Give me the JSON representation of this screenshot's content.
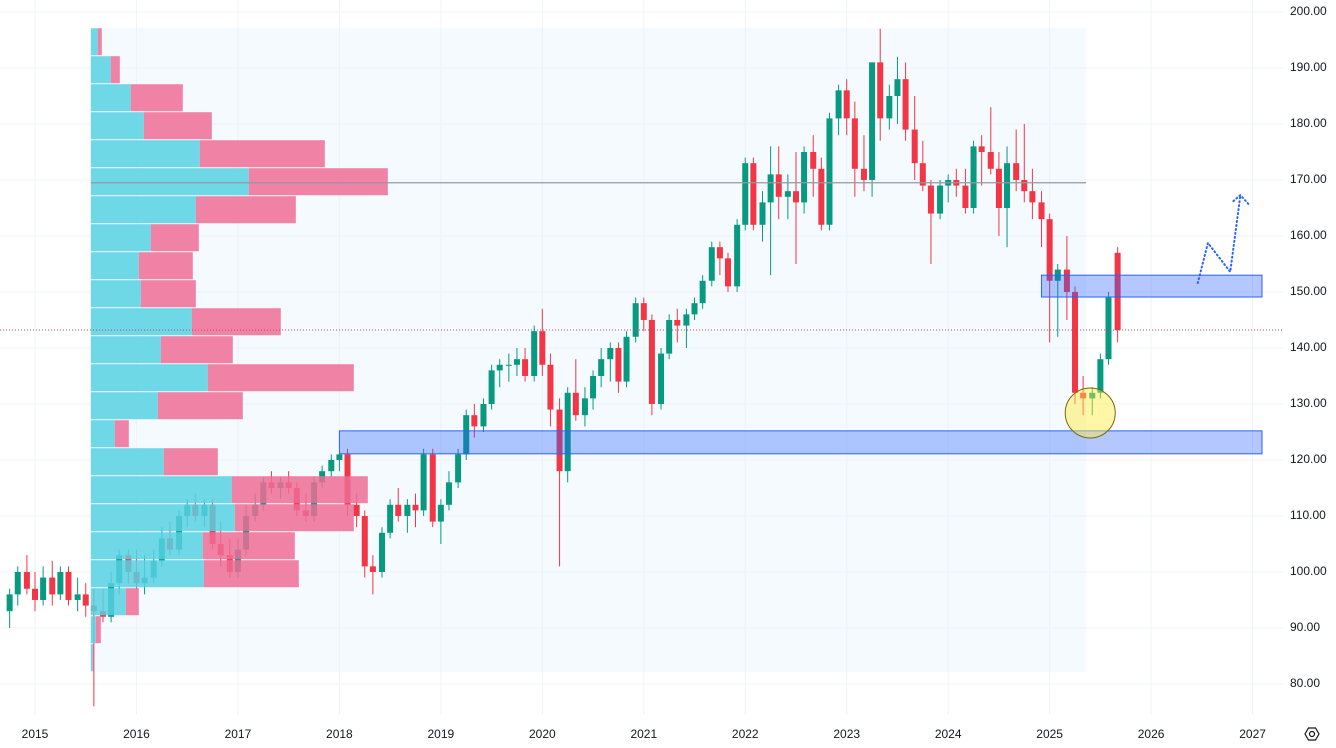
{
  "chart_data": {
    "type": "candlestick",
    "up_color": "#089981",
    "down_color": "#f23645",
    "grid": true,
    "xlim": [
      2014.655,
      2027.29
    ],
    "xticks": [
      2015,
      2016,
      2017,
      2018,
      2019,
      2020,
      2021,
      2022,
      2023,
      2024,
      2025,
      2026,
      2027
    ],
    "ylim": [
      74.46,
      202.14
    ],
    "yticks": [
      {
        "value": 80,
        "label": "80.00"
      },
      {
        "value": 90,
        "label": "90.00"
      },
      {
        "value": 100,
        "label": "100.00"
      },
      {
        "value": 110,
        "label": "110.00"
      },
      {
        "value": 120,
        "label": "120.00"
      },
      {
        "value": 130,
        "label": "130.00"
      },
      {
        "value": 140,
        "label": "140.00"
      },
      {
        "value": 150,
        "label": "150.00"
      },
      {
        "value": 160,
        "label": "160.00"
      },
      {
        "value": 170,
        "label": "170.00"
      },
      {
        "value": 180,
        "label": "180.00"
      },
      {
        "value": 190,
        "label": "190.00"
      },
      {
        "value": 200,
        "label": "200.00"
      }
    ],
    "x": [
      2014.75,
      2014.83,
      2014.92,
      2015,
      2015.08,
      2015.17,
      2015.25,
      2015.33,
      2015.42,
      2015.5,
      2015.58,
      2015.67,
      2015.75,
      2015.83,
      2015.92,
      2016,
      2016.08,
      2016.17,
      2016.25,
      2016.33,
      2016.42,
      2016.5,
      2016.58,
      2016.67,
      2016.75,
      2016.83,
      2016.92,
      2017,
      2017.08,
      2017.17,
      2017.25,
      2017.33,
      2017.42,
      2017.5,
      2017.58,
      2017.67,
      2017.75,
      2017.83,
      2017.92,
      2018,
      2018.08,
      2018.17,
      2018.25,
      2018.33,
      2018.42,
      2018.5,
      2018.58,
      2018.67,
      2018.75,
      2018.83,
      2018.92,
      2019,
      2019.08,
      2019.17,
      2019.25,
      2019.33,
      2019.42,
      2019.5,
      2019.58,
      2019.67,
      2019.75,
      2019.83,
      2019.92,
      2020,
      2020.08,
      2020.17,
      2020.25,
      2020.33,
      2020.42,
      2020.5,
      2020.58,
      2020.67,
      2020.75,
      2020.83,
      2020.92,
      2021,
      2021.08,
      2021.17,
      2021.25,
      2021.33,
      2021.42,
      2021.5,
      2021.58,
      2021.67,
      2021.75,
      2021.83,
      2021.92,
      2022,
      2022.08,
      2022.17,
      2022.25,
      2022.33,
      2022.42,
      2022.5,
      2022.58,
      2022.67,
      2022.75,
      2022.83,
      2022.92,
      2023,
      2023.08,
      2023.17,
      2023.25,
      2023.33,
      2023.42,
      2023.5,
      2023.58,
      2023.67,
      2023.75,
      2023.83,
      2023.92,
      2024,
      2024.08,
      2024.17,
      2024.25,
      2024.33,
      2024.42,
      2024.5,
      2024.58,
      2024.67,
      2024.75,
      2024.83,
      2024.92,
      2025,
      2025.08,
      2025.17,
      2025.25,
      2025.33,
      2025.42,
      2025.5,
      2025.58,
      2025.67
    ],
    "open": [
      93,
      96,
      100,
      97,
      95,
      99,
      96,
      100,
      95,
      96,
      94,
      93,
      92,
      98,
      103,
      100,
      98,
      99,
      102,
      106,
      104,
      110,
      112,
      110,
      112,
      105,
      103,
      100,
      104,
      110,
      112,
      116,
      115,
      116,
      115,
      111,
      110,
      116,
      118,
      120,
      121,
      112,
      110,
      101,
      100,
      107,
      112,
      110,
      112,
      111,
      121,
      109,
      112,
      116,
      121,
      128,
      126,
      130,
      136,
      137,
      137,
      138,
      135,
      143,
      137,
      129,
      118,
      132,
      128,
      131,
      135,
      138,
      140,
      134,
      142,
      148,
      145,
      130,
      139,
      145,
      144,
      146,
      148,
      152,
      158,
      156,
      151,
      162,
      173,
      162,
      166,
      171,
      167,
      168,
      166,
      175,
      172,
      162,
      181,
      186,
      181,
      172,
      170,
      191,
      181,
      185,
      188,
      179,
      173,
      169,
      164,
      169,
      170,
      169,
      165,
      176,
      175,
      172,
      165,
      173,
      170,
      168,
      166,
      163,
      152,
      154,
      150,
      132,
      131,
      132,
      138,
      157
    ],
    "high": [
      97,
      101,
      103,
      100,
      101,
      102,
      101,
      101,
      99,
      98,
      97,
      97,
      100,
      104,
      104,
      104,
      103,
      104,
      108,
      109,
      111,
      113,
      114,
      113,
      113,
      109,
      106,
      106,
      112,
      114,
      117,
      118,
      117,
      118,
      116,
      114,
      117,
      119,
      121,
      121,
      122,
      114,
      111,
      103,
      108,
      113,
      115,
      113,
      114,
      122,
      122,
      113,
      118,
      122,
      129,
      130,
      131,
      137,
      138,
      139,
      140,
      140,
      144,
      147,
      139,
      131,
      133,
      138,
      133,
      136,
      140,
      141,
      141,
      143,
      149,
      149,
      146,
      140,
      146,
      147,
      147,
      149,
      153,
      159,
      159,
      157,
      163,
      174,
      174,
      168,
      176,
      176,
      171,
      175,
      176,
      178,
      174,
      182,
      187,
      188,
      184,
      178,
      191,
      197,
      187,
      192,
      191,
      185,
      177,
      170,
      170,
      171,
      172,
      172,
      177,
      178,
      183,
      175,
      176,
      179,
      180,
      172,
      168,
      164,
      155,
      160,
      151,
      135,
      133,
      139,
      150,
      158
    ],
    "low": [
      90,
      94,
      96,
      93,
      94,
      94,
      95,
      94,
      93,
      92,
      76,
      91,
      91,
      96,
      98,
      97,
      96,
      98,
      101,
      103,
      103,
      108,
      109,
      108,
      104,
      101,
      99,
      99,
      103,
      109,
      111,
      114,
      113,
      114,
      110,
      109,
      109,
      115,
      117,
      118,
      110,
      108,
      99,
      96,
      99,
      106,
      109,
      107,
      108,
      110,
      108,
      105,
      111,
      115,
      120,
      124,
      125,
      129,
      133,
      134,
      135,
      134,
      134,
      135,
      126,
      101,
      116,
      127,
      126,
      129,
      133,
      134,
      132,
      133,
      141,
      143,
      128,
      129,
      138,
      141,
      140,
      145,
      147,
      151,
      153,
      150,
      150,
      161,
      161,
      159,
      153,
      163,
      163,
      155,
      164,
      167,
      161,
      161,
      178,
      178,
      167,
      168,
      167,
      177,
      179,
      180,
      177,
      170,
      168,
      155,
      163,
      166,
      167,
      164,
      164,
      169,
      171,
      160,
      158,
      168,
      166,
      163,
      158,
      141,
      142,
      145,
      130,
      128,
      128,
      131,
      137,
      141
    ],
    "close": [
      96,
      100,
      97,
      95,
      99,
      96,
      100,
      95,
      96,
      94,
      93,
      92,
      98,
      103,
      100,
      98,
      99,
      102,
      106,
      104,
      110,
      112,
      110,
      112,
      105,
      103,
      100,
      104,
      110,
      112,
      116,
      115,
      116,
      115,
      111,
      110,
      116,
      118,
      120,
      121,
      112,
      110,
      101,
      100,
      107,
      112,
      110,
      112,
      111,
      121,
      109,
      112,
      116,
      121,
      128,
      126,
      130,
      136,
      137,
      137,
      138,
      135,
      143,
      137,
      129,
      118,
      132,
      128,
      131,
      135,
      138,
      140,
      134,
      142,
      148,
      145,
      130,
      139,
      145,
      144,
      146,
      148,
      152,
      158,
      156,
      151,
      162,
      173,
      162,
      166,
      171,
      167,
      168,
      166,
      175,
      172,
      162,
      181,
      186,
      181,
      172,
      170,
      191,
      181,
      185,
      188,
      179,
      173,
      169,
      164,
      169,
      170,
      169,
      165,
      176,
      175,
      172,
      165,
      173,
      170,
      168,
      166,
      163,
      152,
      154,
      150,
      132,
      131,
      132,
      138,
      149,
      143.2
    ],
    "profile": {
      "x_range": [
        2015.55,
        2025.36
      ],
      "edges": [
        197.1,
        192.1,
        187.1,
        182.1,
        177.1,
        172.1,
        167.1,
        162.1,
        157.1,
        152.1,
        147.1,
        142.1,
        137.1,
        132.1,
        127.1,
        122.1,
        117.1,
        112.1,
        107.1,
        102.1,
        97.1,
        92.1,
        87.1,
        82.1
      ],
      "up": [
        7,
        20,
        40,
        53,
        109,
        158,
        105,
        60,
        48,
        50,
        101,
        70,
        117,
        67,
        24,
        73,
        141,
        144,
        112,
        113,
        35,
        5,
        2
      ],
      "down": [
        4,
        9,
        52,
        68,
        125,
        139,
        100,
        48,
        54,
        55,
        89,
        72,
        146,
        85,
        14,
        54,
        136,
        119,
        92,
        95,
        13,
        5,
        1
      ],
      "up_color": "#56d1e3",
      "down_color": "#ef6c97",
      "poc": 169.5
    },
    "zones": [
      {
        "x0": 2018.0,
        "top": 125.2,
        "bottom": 121.1
      },
      {
        "x0": 2024.92,
        "top": 153.0,
        "bottom": 149.1
      }
    ],
    "highlight": {
      "x": 2025.4,
      "y": 128.4
    },
    "projection": {
      "x": [
        2026.46,
        2026.56,
        2026.78,
        2026.88
      ],
      "y": [
        151.6,
        158.75,
        153.6,
        167.3
      ]
    }
  }
}
